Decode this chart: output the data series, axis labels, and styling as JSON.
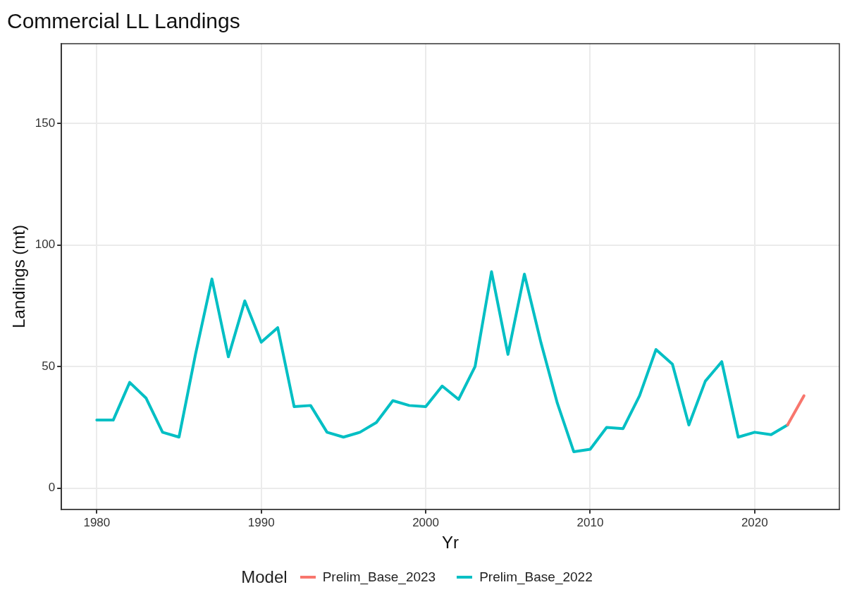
{
  "chart_data": {
    "type": "line",
    "title": "Commercial LL Landings",
    "xlabel": "Yr",
    "ylabel": "Landings (mt)",
    "legend_title": "Model",
    "legend": "bottom",
    "grid": true,
    "marker": "none",
    "line_style": "solid",
    "xlim": [
      1977.85,
      2025.15
    ],
    "xticks": [
      1980,
      1990,
      2000,
      2010,
      2020
    ],
    "ylim": [
      -8.7,
      182.7
    ],
    "yticks": [
      0,
      50,
      100,
      150
    ],
    "series": [
      {
        "name": "Prelim_Base_2023",
        "color": "#f8766d",
        "x": [
          2022,
          2023
        ],
        "values": [
          26,
          38
        ]
      },
      {
        "name": "Prelim_Base_2022",
        "color": "#00bfc4",
        "x": [
          1980,
          1981,
          1982,
          1983,
          1984,
          1985,
          1986,
          1987,
          1988,
          1989,
          1990,
          1991,
          1992,
          1993,
          1994,
          1995,
          1996,
          1997,
          1998,
          1999,
          2000,
          2001,
          2002,
          2003,
          2004,
          2005,
          2006,
          2007,
          2008,
          2009,
          2010,
          2011,
          2012,
          2013,
          2014,
          2015,
          2016,
          2017,
          2018,
          2019,
          2020,
          2021,
          2022
        ],
        "values": [
          28,
          28,
          43.5,
          37,
          23,
          21,
          55,
          86,
          54,
          77,
          60,
          66,
          33.5,
          34,
          23,
          21,
          23,
          27,
          36,
          34,
          33.5,
          42,
          36.5,
          50,
          89,
          55,
          88,
          60,
          35,
          15,
          16,
          25,
          24.5,
          38,
          57,
          51,
          26,
          44,
          52,
          21,
          23,
          22,
          26
        ]
      }
    ]
  }
}
